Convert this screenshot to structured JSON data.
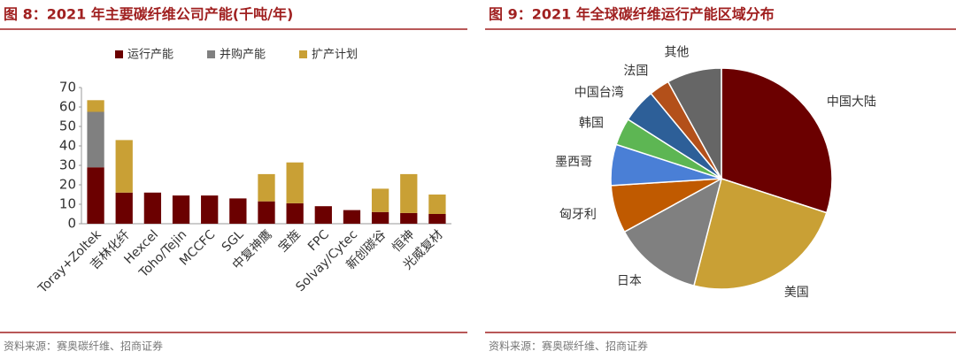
{
  "chart_data": [
    {
      "type": "bar",
      "stacked": true,
      "title": "图 8：2021 年主要碳纤维公司产能(千吨/年)",
      "categories": [
        "Toray+Zoltek",
        "吉林化纤",
        "Hexcel",
        "Toho/Tejin",
        "MCCFC",
        "SGL",
        "中复神鹰",
        "宝旌",
        "FPC",
        "Solvay/Cytec",
        "新创碳谷",
        "恒神",
        "光威复材"
      ],
      "series": [
        {
          "name": "运行产能",
          "color": "#6b0000",
          "values": [
            29,
            16,
            16,
            14.5,
            14.5,
            13,
            11.5,
            10.5,
            9,
            7,
            6,
            5.5,
            5
          ]
        },
        {
          "name": "并购产能",
          "color": "#808080",
          "values": [
            28.5,
            0,
            0,
            0,
            0,
            0,
            0,
            0,
            0,
            0,
            0,
            0,
            0
          ]
        },
        {
          "name": "扩产计划",
          "color": "#c9a035",
          "values": [
            6,
            27,
            0,
            0,
            0,
            0,
            14,
            21,
            0,
            0,
            12,
            20,
            10
          ]
        }
      ],
      "ylim": [
        0,
        70
      ],
      "yticks": [
        0,
        10,
        20,
        30,
        40,
        50,
        60,
        70
      ],
      "source": "资料来源：赛奥碳纤维、招商证券"
    },
    {
      "type": "pie",
      "title": "图 9：2021 年全球碳纤维运行产能区域分布",
      "categories": [
        "中国大陆",
        "美国",
        "日本",
        "匈牙利",
        "墨西哥",
        "韩国",
        "中国台湾",
        "法国",
        "其他"
      ],
      "values": [
        30,
        24,
        13,
        7,
        6,
        4,
        5,
        3,
        8
      ],
      "colors": [
        "#6b0000",
        "#c9a035",
        "#808080",
        "#c05a00",
        "#4a7fd6",
        "#5db653",
        "#2d5f98",
        "#b3501a",
        "#666666"
      ],
      "source": "资料来源：赛奥碳纤维、招商证券"
    }
  ]
}
